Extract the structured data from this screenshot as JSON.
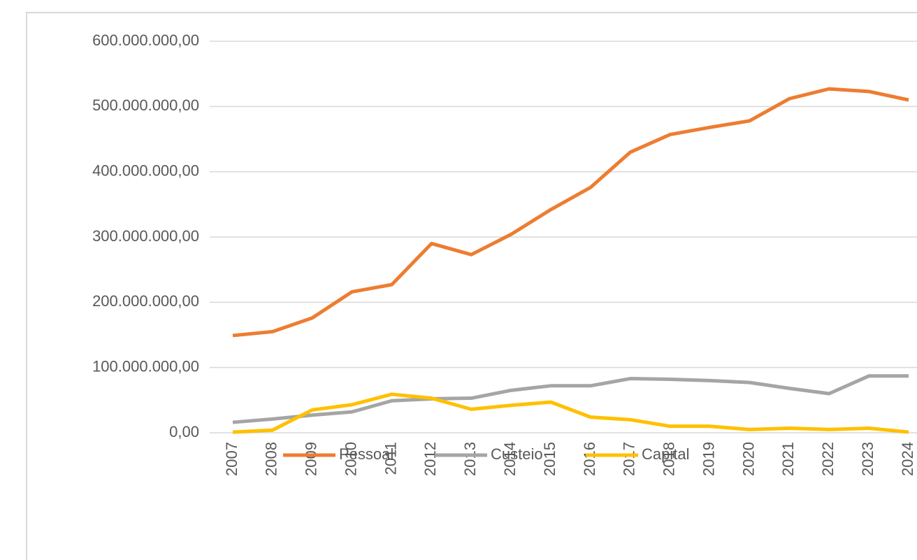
{
  "chart_data": {
    "type": "line",
    "categories": [
      "2007",
      "2008",
      "2009",
      "2010",
      "2011",
      "2012",
      "2013",
      "2014",
      "2015",
      "2016",
      "2017",
      "2018",
      "2019",
      "2020",
      "2021",
      "2022",
      "2023",
      "2024"
    ],
    "series": [
      {
        "name": "Pessoal",
        "color": "#ed7d31",
        "values": [
          149000000,
          155000000,
          176000000,
          216000000,
          227000000,
          290000000,
          273000000,
          304000000,
          342000000,
          376000000,
          430000000,
          457000000,
          468000000,
          478000000,
          512000000,
          527000000,
          523000000,
          510000000
        ]
      },
      {
        "name": "Custeio",
        "color": "#a5a5a5",
        "values": [
          16000000,
          21000000,
          27000000,
          32000000,
          49000000,
          52000000,
          53000000,
          65000000,
          72000000,
          72000000,
          83000000,
          82000000,
          80000000,
          77000000,
          68000000,
          60000000,
          87000000,
          87000000
        ]
      },
      {
        "name": "Capital",
        "color": "#ffc000",
        "values": [
          1000000,
          4000000,
          35000000,
          43000000,
          59000000,
          53000000,
          36000000,
          42000000,
          47000000,
          24000000,
          20000000,
          10000000,
          10000000,
          5000000,
          7000000,
          5000000,
          7000000,
          1000000
        ]
      }
    ],
    "ylim": [
      0,
      600000000
    ],
    "yticks": [
      {
        "value": 0,
        "label": "0,00"
      },
      {
        "value": 100000000,
        "label": "100.000.000,00"
      },
      {
        "value": 200000000,
        "label": "200.000.000,00"
      },
      {
        "value": 300000000,
        "label": "300.000.000,00"
      },
      {
        "value": 400000000,
        "label": "400.000.000,00"
      },
      {
        "value": 500000000,
        "label": "500.000.000,00"
      },
      {
        "value": 600000000,
        "label": "600.000.000,00"
      }
    ],
    "grid": true,
    "legend": "bottom"
  }
}
